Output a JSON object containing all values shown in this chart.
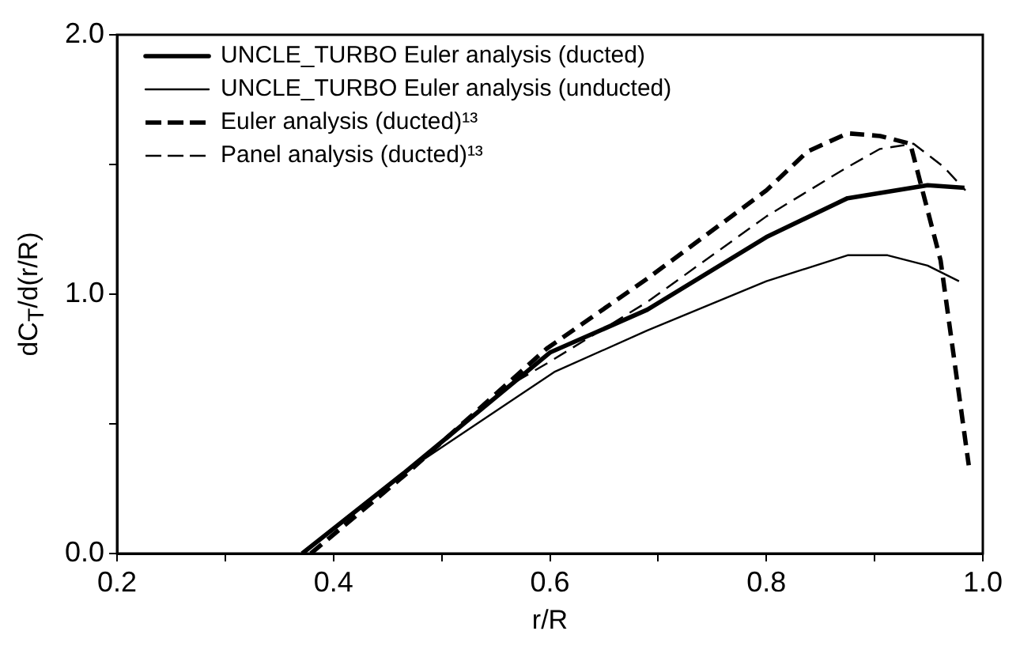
{
  "chart_data": {
    "type": "line",
    "xlabel": "r/R",
    "ylabel": "dC$_{T}$/d(r/R)",
    "xlim": [
      0.2,
      1.0
    ],
    "xticks": [
      0.2,
      {
        "value": 0.3,
        "label": null
      },
      0.4,
      {
        "value": 0.5,
        "label": null
      },
      0.6,
      {
        "value": 0.7,
        "label": null
      },
      0.8,
      {
        "value": 0.9,
        "label": null
      },
      {
        "value": 1.0,
        "label": "1.0"
      }
    ],
    "ylim": [
      0.0,
      2.0
    ],
    "yticks": [
      {
        "value": 0,
        "label": "0.0"
      },
      {
        "value": 0.5,
        "label": null
      },
      {
        "value": 1,
        "label": "1.0"
      },
      {
        "value": 1.5,
        "label": null
      },
      {
        "value": 2,
        "label": "2.0"
      }
    ],
    "grid": false,
    "legend": "top left",
    "marker": "none",
    "series": [
      {
        "name": "UNCLE_TURBO Euler analysis (ducted)",
        "color": "#000000",
        "line_style": "solid",
        "x": [
          0.371,
          0.468,
          0.6,
          0.69,
          0.8,
          0.875,
          0.949,
          0.983
        ],
        "values": [
          0,
          0.32,
          0.775,
          0.94,
          1.22,
          1.37,
          1.42,
          1.41
        ]
      },
      {
        "name": "UNCLE_TURBO Euler analysis (unducted)",
        "color": "#000000",
        "line_style": "solid",
        "x": [
          0.371,
          0.468,
          0.604,
          0.69,
          0.8,
          0.875,
          0.912,
          0.949,
          0.978
        ],
        "values": [
          0,
          0.32,
          0.7,
          0.86,
          1.05,
          1.15,
          1.15,
          1.11,
          1.05
        ]
      },
      {
        "name": "Euler analysis (ducted)¹³",
        "color": "#000000",
        "line_style": "dashed",
        "x": [
          0.379,
          0.468,
          0.597,
          0.69,
          0.8,
          0.838,
          0.875,
          0.905,
          0.933,
          0.961,
          0.987
        ],
        "values": [
          0,
          0.31,
          0.79,
          1.06,
          1.4,
          1.55,
          1.62,
          1.61,
          1.58,
          1.13,
          0.34
        ]
      },
      {
        "name": "Panel analysis (ducted)¹³",
        "color": "#000000",
        "line_style": "dashed",
        "x": [
          0.551,
          0.6,
          0.69,
          0.8,
          0.875,
          0.905,
          0.936,
          0.964,
          0.984
        ],
        "values": [
          0.62,
          0.74,
          0.97,
          1.3,
          1.49,
          1.56,
          1.58,
          1.49,
          1.4
        ]
      }
    ]
  }
}
